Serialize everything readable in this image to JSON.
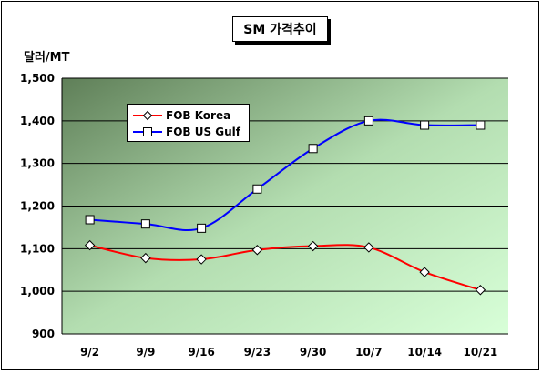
{
  "chart_data": {
    "type": "line",
    "title": "SM 가격추이",
    "ylabel": "달러/MT",
    "xlabel": "",
    "categories": [
      "9/2",
      "9/9",
      "9/16",
      "9/23",
      "9/30",
      "10/7",
      "10/14",
      "10/21"
    ],
    "yticks": [
      "1,500",
      "1,400",
      "1,300",
      "1,200",
      "1,100",
      "1,000",
      "900"
    ],
    "ylim": [
      900,
      1500
    ],
    "grid": true,
    "legend_position": "upper-left",
    "series": [
      {
        "name": "FOB Korea",
        "color": "#ff0000",
        "marker": "diamond",
        "values": [
          1108,
          1078,
          1075,
          1097,
          1106,
          1103,
          1045,
          1003
        ]
      },
      {
        "name": "FOB US Gulf",
        "color": "#0000ff",
        "marker": "square",
        "values": [
          1168,
          1158,
          1148,
          1240,
          1335,
          1400,
          1390,
          1390
        ]
      }
    ]
  }
}
